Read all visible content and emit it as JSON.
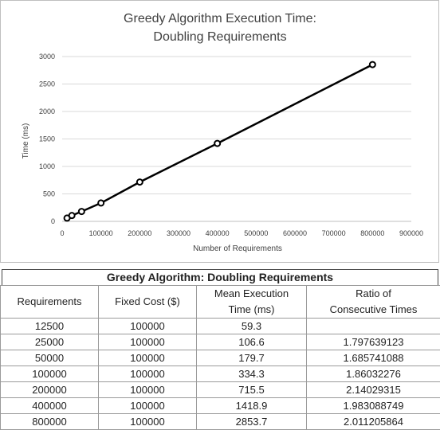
{
  "chart_data": {
    "type": "line",
    "title_line1": "Greedy Algorithm Execution Time:",
    "title_line2": "Doubling Requirements",
    "xlabel": "Number  of Requirements",
    "ylabel": "Time (ms)",
    "xlim": [
      0,
      900000
    ],
    "ylim": [
      0,
      3000
    ],
    "x_ticks": [
      0,
      100000,
      200000,
      300000,
      400000,
      500000,
      600000,
      700000,
      800000,
      900000
    ],
    "y_ticks": [
      0,
      500,
      1000,
      1500,
      2000,
      2500,
      3000
    ],
    "grid": "horizontal",
    "series": [
      {
        "x": [
          12500,
          25000,
          50000,
          100000,
          200000,
          400000,
          800000
        ],
        "y": [
          59.3,
          106.6,
          179.7,
          334.3,
          715.5,
          1418.9,
          2853.7
        ],
        "color": "#000000",
        "marker": "circle"
      }
    ]
  },
  "table": {
    "title": "Greedy Algorithm: Doubling Requirements",
    "headers": [
      "Requirements",
      "Fixed Cost ($)",
      "Mean Execution Time (ms)",
      "Ratio of Consecutive Times"
    ],
    "header_lines": [
      [
        "Requirements"
      ],
      [
        "Fixed Cost ($)"
      ],
      [
        "Mean Execution",
        "Time (ms)"
      ],
      [
        "Ratio of",
        "Consecutive Times"
      ]
    ],
    "rows": [
      [
        "12500",
        "100000",
        "59.3",
        ""
      ],
      [
        "25000",
        "100000",
        "106.6",
        "1.797639123"
      ],
      [
        "50000",
        "100000",
        "179.7",
        "1.685741088"
      ],
      [
        "100000",
        "100000",
        "334.3",
        "1.86032276"
      ],
      [
        "200000",
        "100000",
        "715.5",
        "2.14029315"
      ],
      [
        "400000",
        "100000",
        "1418.9",
        "1.983088749"
      ],
      [
        "800000",
        "100000",
        "2853.7",
        "2.011205864"
      ]
    ]
  }
}
